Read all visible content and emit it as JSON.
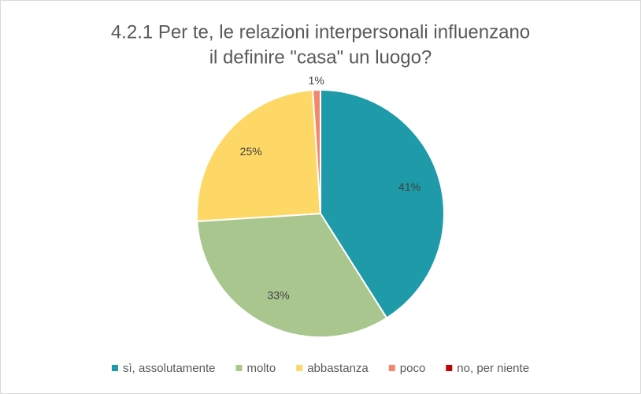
{
  "chart_data": {
    "type": "pie",
    "title": [
      "4.2.1 Per te, le relazioni interpersonali influenzano",
      "il definire \"casa\" un luogo?"
    ],
    "categories": [
      "sì, assolutamente",
      "molto",
      "abbastanza",
      "poco",
      "no, per niente"
    ],
    "values": [
      41,
      33,
      25,
      1,
      0
    ],
    "value_labels": [
      "41%",
      "33%",
      "25%",
      "1%",
      null
    ],
    "colors": [
      "#1e9aa8",
      "#a9c68f",
      "#fdd866",
      "#f4876b",
      "#c0000b"
    ],
    "legend": "bottom"
  }
}
